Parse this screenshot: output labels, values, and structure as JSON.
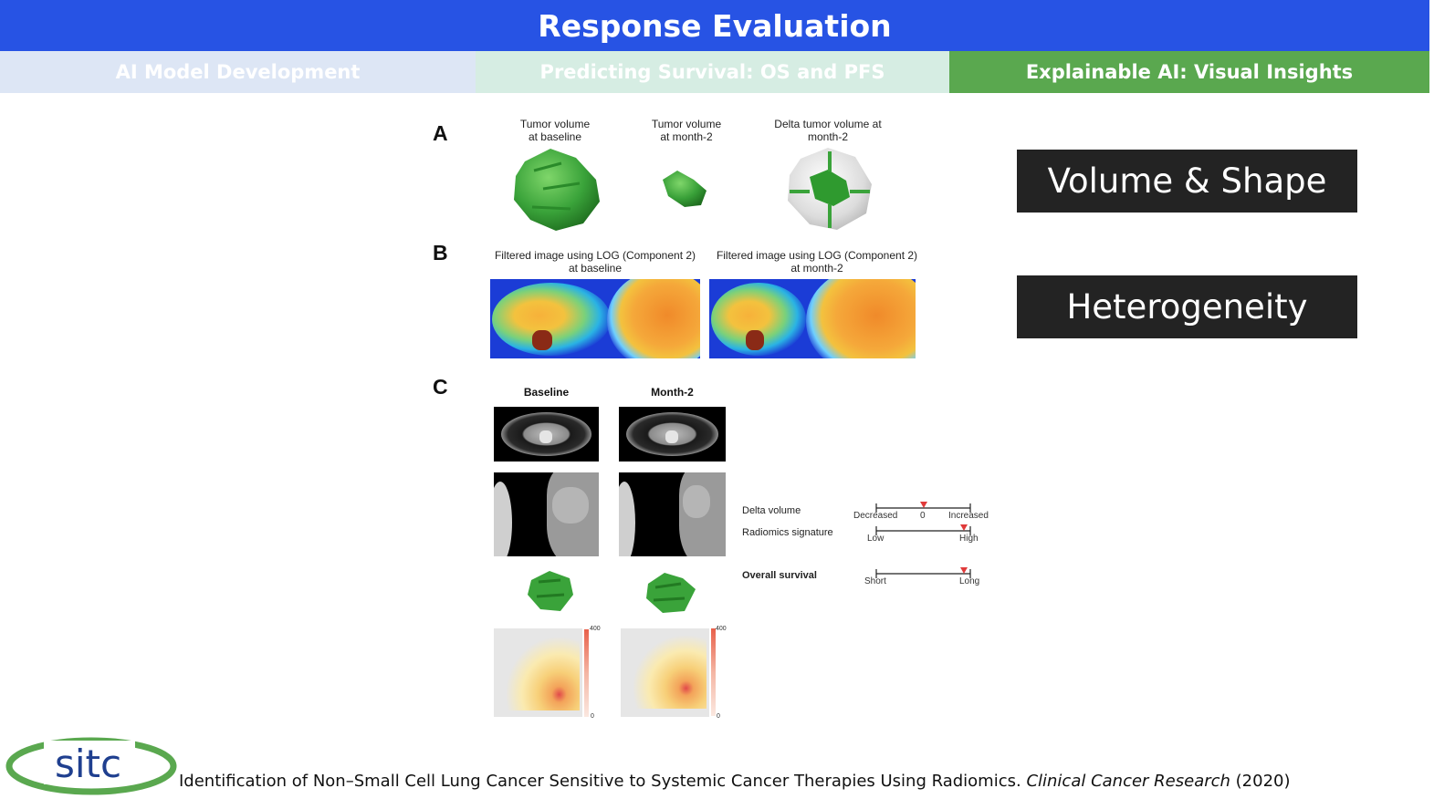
{
  "header": {
    "title": "Response Evaluation"
  },
  "tabs": [
    {
      "label": "AI Model Development"
    },
    {
      "label": "Predicting Survival: OS and PFS"
    },
    {
      "label": "Explainable AI: Visual Insights"
    }
  ],
  "figure": {
    "panel_a": {
      "letter": "A",
      "captions": [
        "Tumor volume\nat baseline",
        "Tumor volume\nat month-2",
        "Delta tumor volume at\nmonth-2"
      ]
    },
    "panel_b": {
      "letter": "B",
      "captions": [
        "Filtered image using LOG (Component 2)\nat baseline",
        "Filtered image using LOG (Component 2)\nat month-2"
      ]
    },
    "panel_c": {
      "letter": "C",
      "col_baseline": "Baseline",
      "col_month2": "Month-2",
      "delta_volume": "Delta volume",
      "radiomics_signature": "Radiomics signature",
      "overall_survival": "Overall survival",
      "scale_decreased": "Decreased",
      "scale_zero": "0",
      "scale_increased": "Increased",
      "scale_low": "Low",
      "scale_high": "High",
      "scale_short": "Short",
      "scale_long": "Long",
      "colorbar_max": "400",
      "colorbar_min": "0"
    }
  },
  "badges": {
    "volume_shape": "Volume & Shape",
    "heterogeneity": "Heterogeneity"
  },
  "footer": {
    "logo_text": "sitc",
    "citation_main": "Identification of Non–Small Cell Lung Cancer Sensitive to Systemic Cancer Therapies Using Radiomics. ",
    "citation_journal": "Clinical Cancer Research",
    "citation_year": " (2020)"
  },
  "colors": {
    "header": "#2753e4",
    "active_tab": "#5aa84f",
    "tumor_green": "#3aa33a",
    "badge": "#232323"
  }
}
